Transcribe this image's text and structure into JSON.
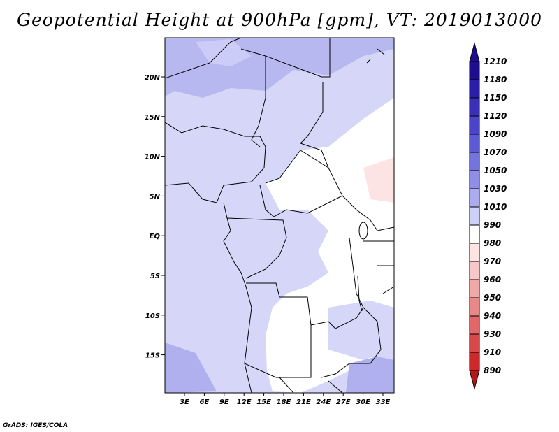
{
  "title": "Geopotential Height at 900hPa [gpm], VT: 2019013000",
  "footer": "GrADS: IGES/COLA",
  "map": {
    "lat_labels": [
      "20N",
      "15N",
      "10N",
      "5N",
      "EQ",
      "5S",
      "10S",
      "15S"
    ],
    "lon_labels": [
      "3E",
      "6E",
      "9E",
      "12E",
      "15E",
      "18E",
      "21E",
      "24E",
      "27E",
      "30E",
      "33E"
    ]
  },
  "colorbar": {
    "levels": [
      "1210",
      "1180",
      "1150",
      "1120",
      "1090",
      "1070",
      "1050",
      "1030",
      "1010",
      "990",
      "980",
      "970",
      "960",
      "950",
      "940",
      "930",
      "910",
      "890"
    ],
    "colors": [
      "#1c0e8c",
      "#2a1ea6",
      "#3a30b8",
      "#4a44c8",
      "#5e5ad4",
      "#7474de",
      "#8e8ee6",
      "#ababee",
      "#cfd0f8",
      "#ffffff",
      "#fde4e4",
      "#f8c8c8",
      "#f0a8a8",
      "#e88888",
      "#e06868",
      "#d84848",
      "#cc2a2a",
      "#b41818"
    ]
  },
  "legend": {
    "fill_colors": {
      "land_main": "#ccccf8",
      "land_light": "#dcdcfc",
      "high": "#b4b4f0",
      "low": "#ffffff",
      "pink": "#fde4e4"
    }
  }
}
